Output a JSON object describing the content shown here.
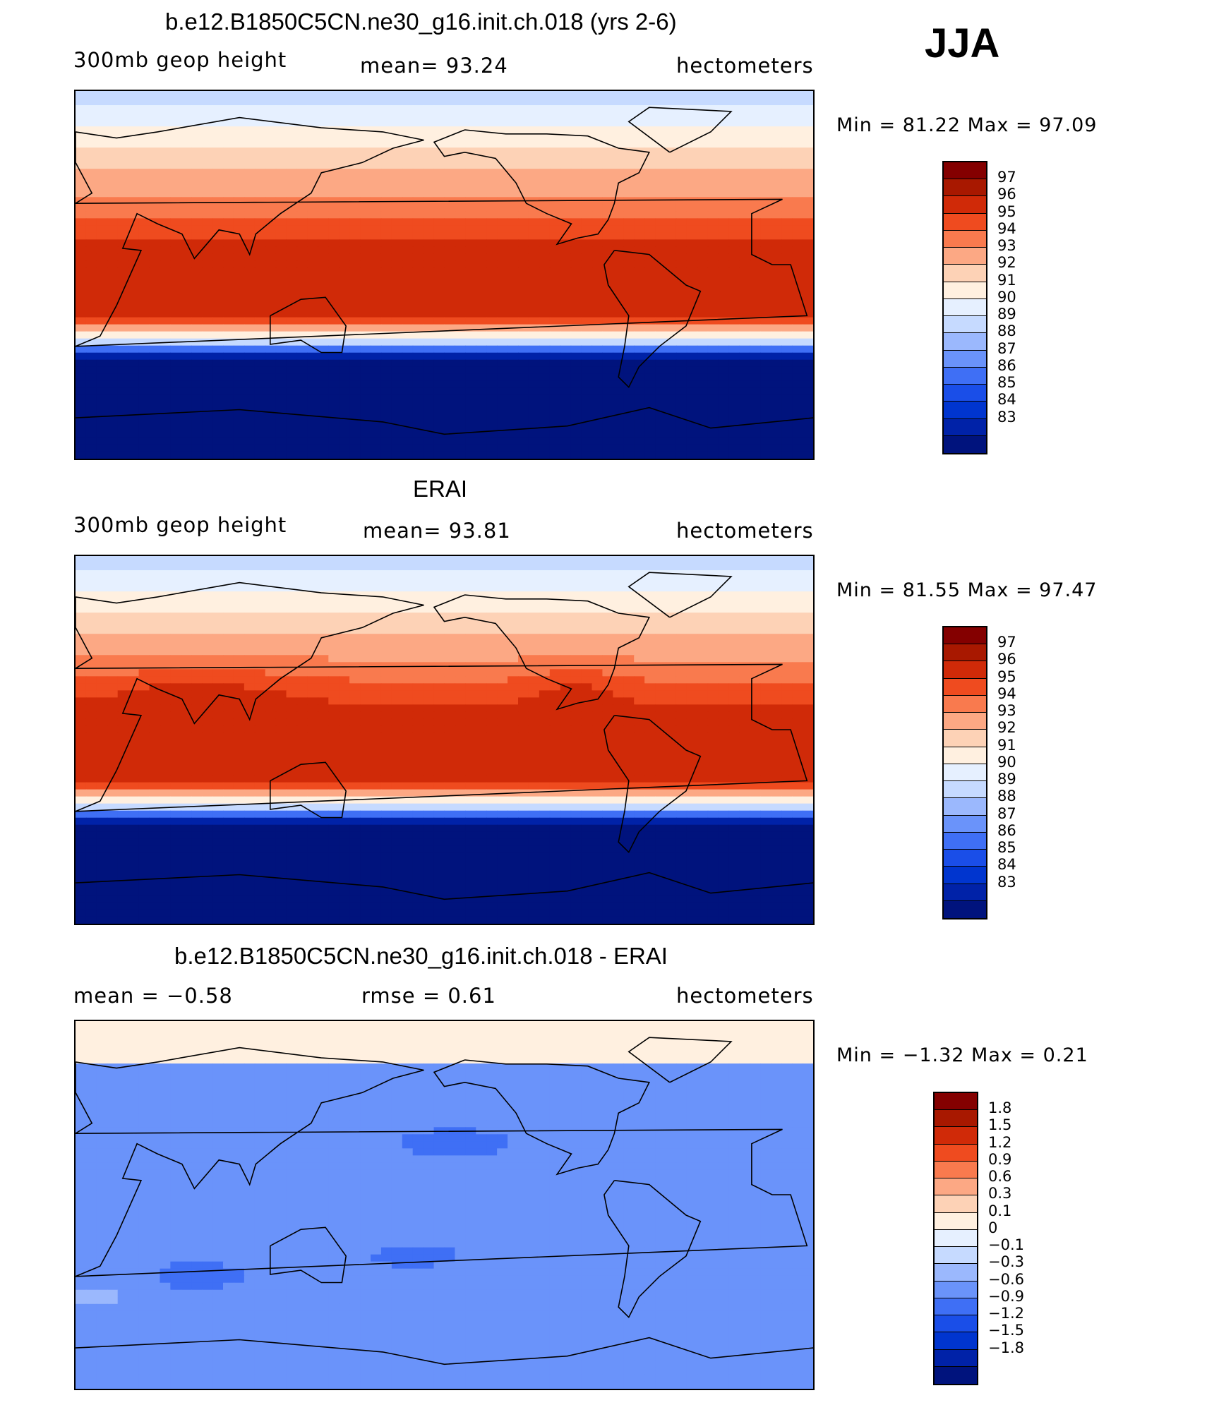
{
  "season": "JJA",
  "colors": {
    "abs": [
      "#00137d",
      "#0022a8",
      "#0035cf",
      "#1a4ee8",
      "#3f6ff5",
      "#6a93fa",
      "#9bb8fd",
      "#c6daff",
      "#e6f0ff",
      "#fff0e0",
      "#fdd2b6",
      "#fca884",
      "#f97a4e",
      "#ef4b1f",
      "#d02a08",
      "#a81800",
      "#840000"
    ],
    "diff": [
      "#00137d",
      "#0022a8",
      "#0035cf",
      "#1a4ee8",
      "#3f6ff5",
      "#6a93fa",
      "#9bb8fd",
      "#c6daff",
      "#e6f0ff",
      "#fff0e0",
      "#fdd2b6",
      "#fca884",
      "#f97a4e",
      "#ef4b1f",
      "#d02a08",
      "#a81800",
      "#840000"
    ]
  },
  "panels": [
    {
      "title": "b.e12.B1850C5CN.ne30_g16.init.ch.018 (yrs 2-6)",
      "left": "300mb  geop  height",
      "center": "mean=   93.24",
      "right": "hectometers",
      "minmax": "Min  =    81.22  Max  =     97.09",
      "colorbar_labels": [
        "97",
        "96",
        "95",
        "94",
        "93",
        "92",
        "91",
        "90",
        "89",
        "88",
        "87",
        "86",
        "85",
        "84",
        "83"
      ],
      "field": "model"
    },
    {
      "title": "ERAI",
      "left": "300mb  geop  height",
      "center": "mean=   93.81",
      "right": "hectometers",
      "minmax": "Min  =    81.55  Max  =     97.47",
      "colorbar_labels": [
        "97",
        "96",
        "95",
        "94",
        "93",
        "92",
        "91",
        "90",
        "89",
        "88",
        "87",
        "86",
        "85",
        "84",
        "83"
      ],
      "field": "obs"
    },
    {
      "title": "b.e12.B1850C5CN.ne30_g16.init.ch.018 - ERAI",
      "left": "mean  =    −0.58",
      "center": "rmse  =     0.61",
      "right": "hectometers",
      "minmax": "Min  =    −1.32  Max  =      0.21",
      "colorbar_labels": [
        "1.8",
        "1.5",
        "1.2",
        "0.9",
        "0.6",
        "0.3",
        "0.1",
        "0",
        "−0.1",
        "−0.3",
        "−0.6",
        "−0.9",
        "−1.2",
        "−1.5",
        "−1.8"
      ],
      "field": "diff"
    }
  ]
}
